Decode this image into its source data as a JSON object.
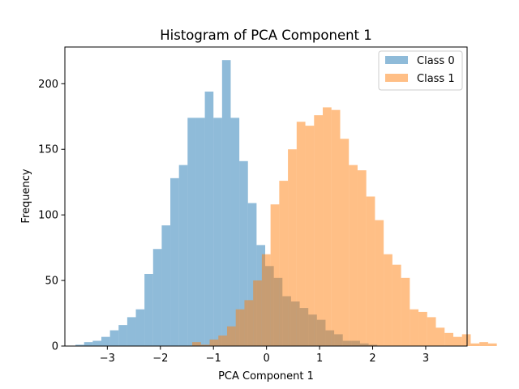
{
  "chart_data": {
    "type": "bar",
    "title": "Histogram of PCA Component 1",
    "xlabel": "PCA Component 1",
    "ylabel": "Frequency",
    "xlim": [
      -3.8,
      3.78
    ],
    "ylim": [
      0,
      228
    ],
    "xticks": [
      -3,
      -2,
      -1,
      0,
      1,
      2,
      3
    ],
    "yticks": [
      0,
      50,
      100,
      150,
      200
    ],
    "grid": false,
    "legend_position": "top-right",
    "series": [
      {
        "name": "Class 0",
        "color": "#1f77b4",
        "opacity": 0.5,
        "bin_start": -3.6,
        "bin_width": 0.1625,
        "values": [
          1,
          3,
          4,
          7,
          12,
          16,
          22,
          28,
          55,
          74,
          92,
          128,
          138,
          174,
          174,
          194,
          174,
          218,
          174,
          141,
          109,
          77,
          61,
          52,
          38,
          34,
          29,
          24,
          20,
          12,
          9,
          4,
          4,
          2,
          1
        ]
      },
      {
        "name": "Class 1",
        "color": "#ff7f0e",
        "opacity": 0.5,
        "bin_start": -1.4,
        "bin_width": 0.164,
        "values": [
          3,
          1,
          5,
          8,
          15,
          28,
          35,
          50,
          70,
          108,
          126,
          150,
          171,
          168,
          176,
          182,
          180,
          158,
          138,
          134,
          114,
          96,
          70,
          62,
          52,
          28,
          26,
          22,
          14,
          10,
          7,
          9,
          2,
          3,
          2
        ]
      }
    ]
  }
}
